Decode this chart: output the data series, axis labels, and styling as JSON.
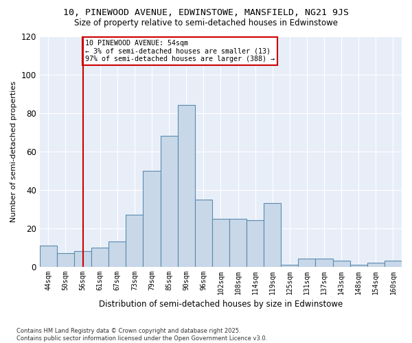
{
  "title1": "10, PINEWOOD AVENUE, EDWINSTOWE, MANSFIELD, NG21 9JS",
  "title2": "Size of property relative to semi-detached houses in Edwinstowe",
  "xlabel": "Distribution of semi-detached houses by size in Edwinstowe",
  "ylabel": "Number of semi-detached properties",
  "categories": [
    "44sqm",
    "50sqm",
    "56sqm",
    "61sqm",
    "67sqm",
    "73sqm",
    "79sqm",
    "85sqm",
    "90sqm",
    "96sqm",
    "102sqm",
    "108sqm",
    "114sqm",
    "119sqm",
    "125sqm",
    "131sqm",
    "137sqm",
    "143sqm",
    "148sqm",
    "154sqm",
    "160sqm"
  ],
  "values": [
    11,
    7,
    8,
    10,
    13,
    27,
    50,
    68,
    84,
    35,
    25,
    25,
    24,
    33,
    1,
    4,
    4,
    3,
    1,
    2,
    3
  ],
  "bar_color": "#c8d8e8",
  "bar_edge_color": "#5a8ab0",
  "background_color": "#e8eef8",
  "red_line_index": 2,
  "annotation_text": "10 PINEWOOD AVENUE: 54sqm\n← 3% of semi-detached houses are smaller (13)\n97% of semi-detached houses are larger (388) →",
  "annotation_box_color": "#ffffff",
  "annotation_box_edge_color": "#cc0000",
  "footer": "Contains HM Land Registry data © Crown copyright and database right 2025.\nContains public sector information licensed under the Open Government Licence v3.0.",
  "ylim": [
    0,
    120
  ],
  "yticks": [
    0,
    20,
    40,
    60,
    80,
    100,
    120
  ]
}
